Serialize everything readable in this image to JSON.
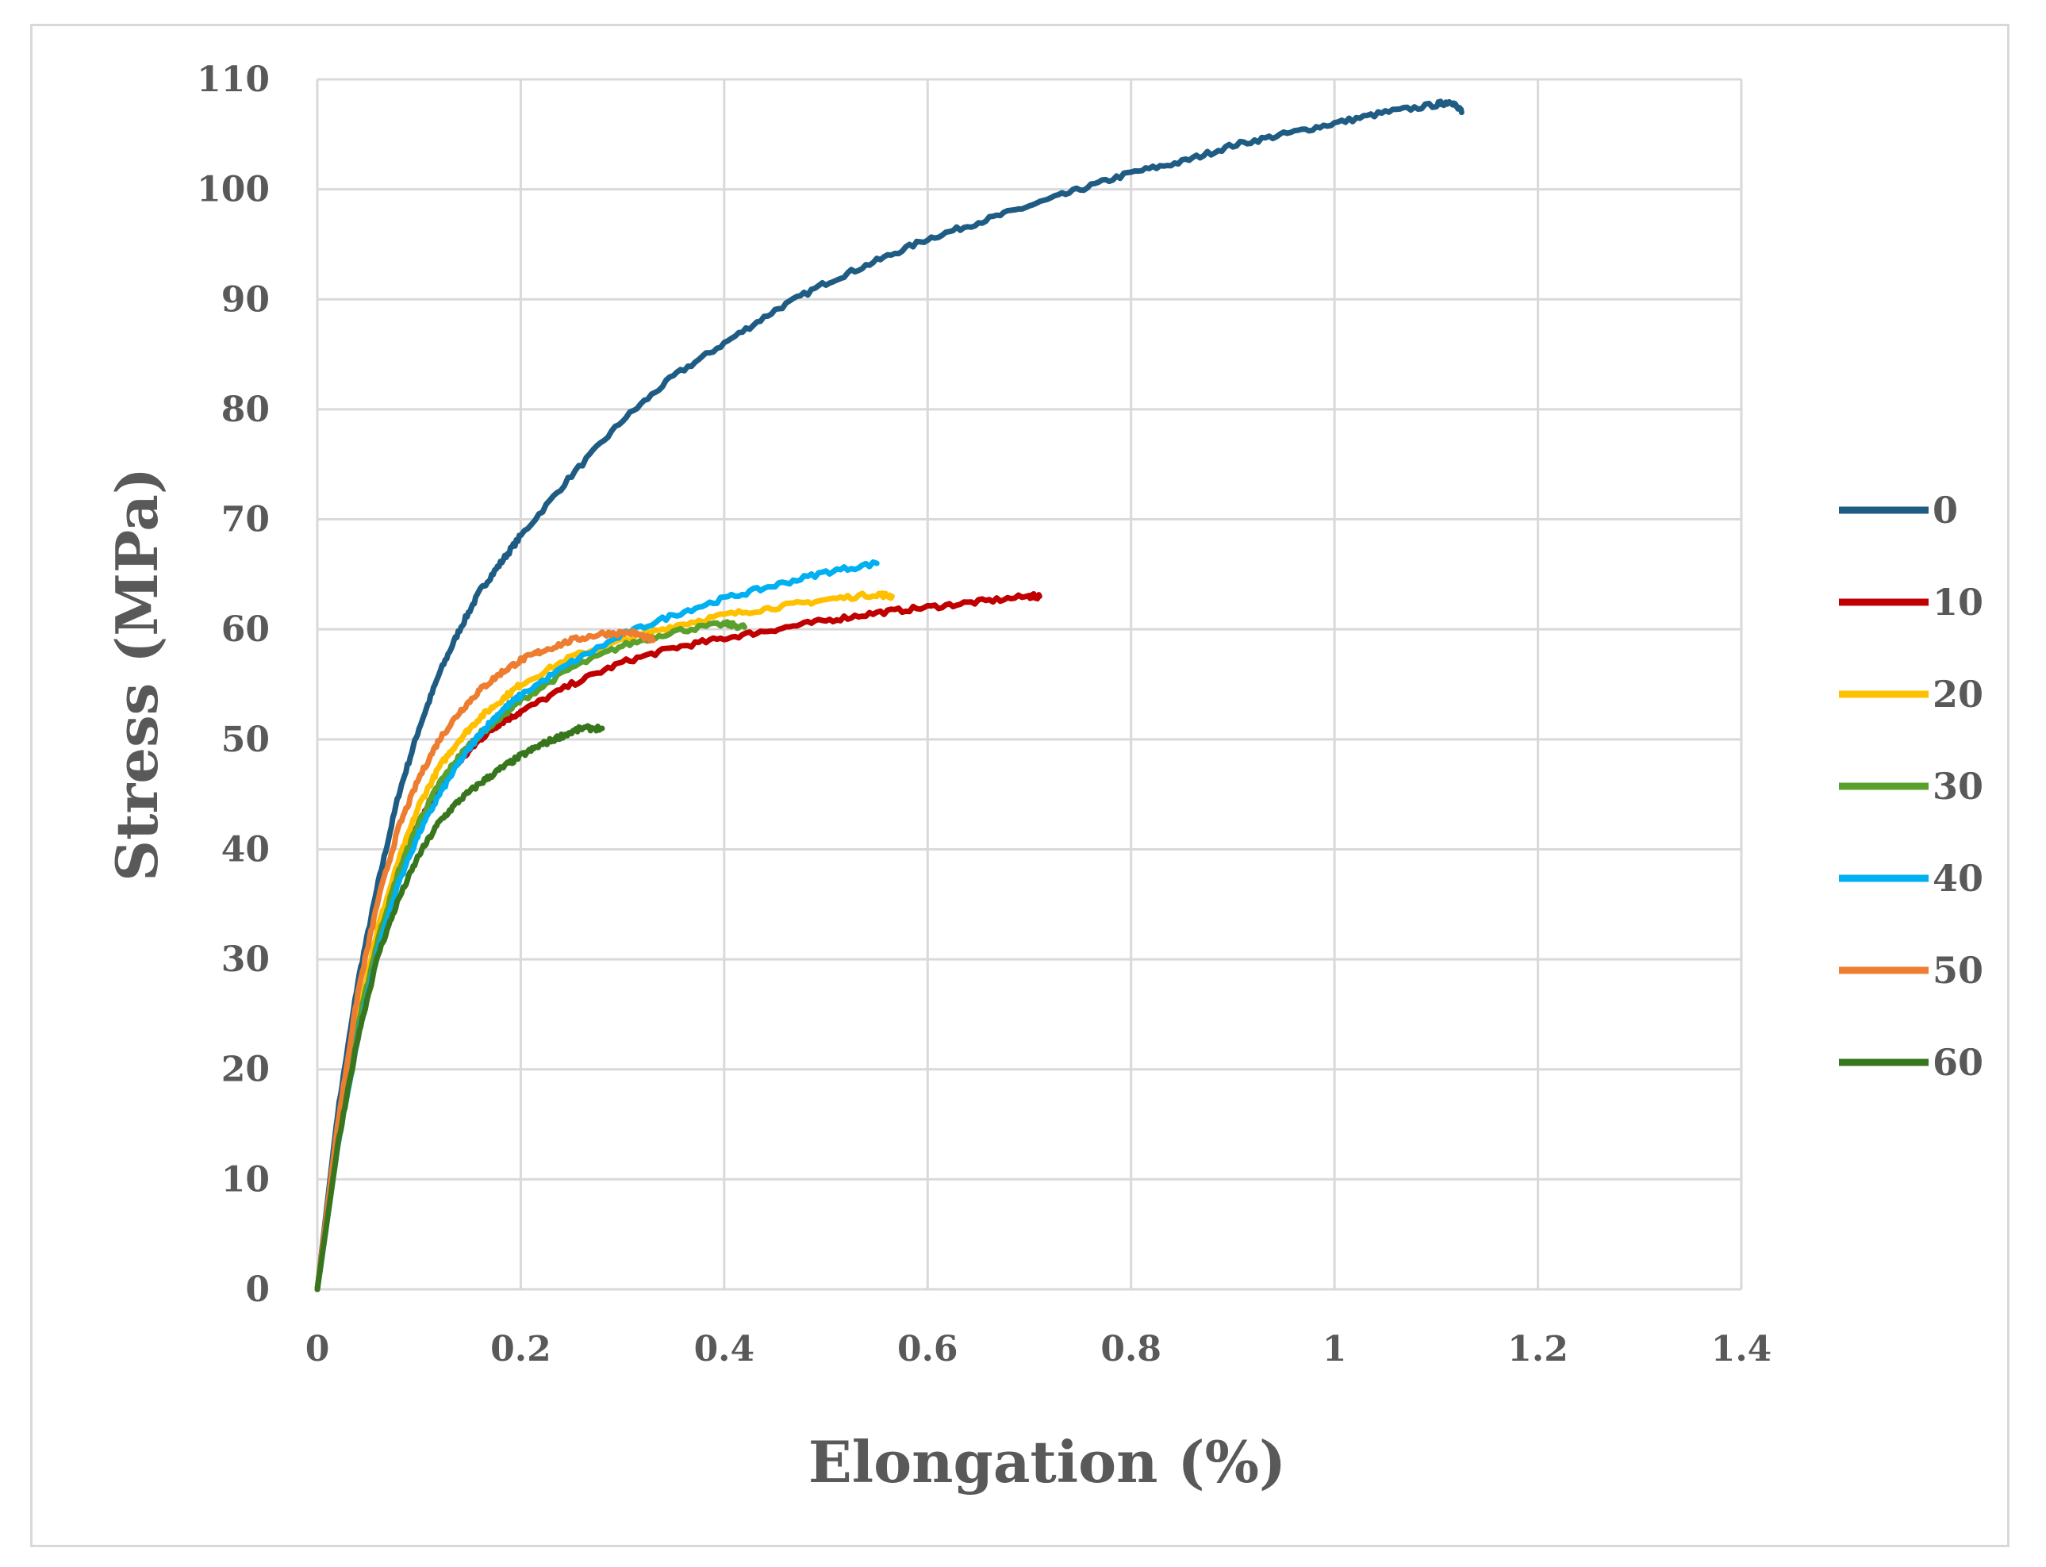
{
  "chart_data": {
    "type": "line",
    "title": "",
    "xlabel": "Elongation (%)",
    "ylabel": "Stress (MPa)",
    "xlim": [
      0,
      1.4
    ],
    "ylim": [
      0,
      110
    ],
    "xticks": [
      0,
      0.2,
      0.4,
      0.6,
      0.8,
      1,
      1.2,
      1.4
    ],
    "xtick_labels": [
      "0",
      "0.2",
      "0.4",
      "0.6",
      "0.8",
      "1",
      "1.2",
      "1.4"
    ],
    "yticks": [
      0,
      10,
      20,
      30,
      40,
      50,
      60,
      70,
      80,
      90,
      100,
      110
    ],
    "ytick_labels": [
      "0",
      "10",
      "20",
      "30",
      "40",
      "50",
      "60",
      "70",
      "80",
      "90",
      "100",
      "110"
    ],
    "grid": true,
    "legend_position": "right",
    "series": [
      {
        "name": "0",
        "color": "#1f5c84",
        "x": [
          0,
          0.02,
          0.04,
          0.06,
          0.08,
          0.1,
          0.12,
          0.14,
          0.16,
          0.18,
          0.2,
          0.25,
          0.3,
          0.35,
          0.4,
          0.45,
          0.5,
          0.55,
          0.6,
          0.65,
          0.7,
          0.75,
          0.8,
          0.85,
          0.9,
          0.95,
          1.0,
          1.05,
          1.1,
          1.115,
          1.125
        ],
        "y": [
          0,
          16,
          28,
          37,
          45,
          51,
          56,
          60,
          63.5,
          66,
          68.5,
          74,
          79,
          83,
          86,
          89,
          91.5,
          93.5,
          95.5,
          97,
          98.5,
          100,
          101.5,
          102.5,
          104,
          105,
          106,
          107,
          107.7,
          108,
          107
        ]
      },
      {
        "name": "10",
        "color": "#c00000",
        "x": [
          0,
          0.02,
          0.04,
          0.06,
          0.08,
          0.1,
          0.12,
          0.14,
          0.16,
          0.18,
          0.2,
          0.25,
          0.3,
          0.35,
          0.4,
          0.45,
          0.5,
          0.55,
          0.6,
          0.65,
          0.7,
          0.71
        ],
        "y": [
          0,
          14,
          24,
          32,
          38,
          42.5,
          45.5,
          48,
          50,
          51.5,
          52.5,
          55,
          57,
          58.3,
          59.2,
          60,
          60.8,
          61.5,
          62,
          62.5,
          63,
          63
        ]
      },
      {
        "name": "20",
        "color": "#ffc000",
        "x": [
          0,
          0.02,
          0.04,
          0.06,
          0.08,
          0.1,
          0.12,
          0.14,
          0.16,
          0.18,
          0.2,
          0.25,
          0.3,
          0.35,
          0.4,
          0.45,
          0.5,
          0.55,
          0.565
        ],
        "y": [
          0,
          14,
          25,
          33,
          39,
          44,
          47.5,
          50,
          52,
          53.5,
          55,
          57.5,
          59,
          60.3,
          61.3,
          62,
          62.7,
          63.2,
          63
        ]
      },
      {
        "name": "30",
        "color": "#5aa02c",
        "x": [
          0,
          0.02,
          0.04,
          0.06,
          0.08,
          0.1,
          0.12,
          0.14,
          0.16,
          0.18,
          0.2,
          0.25,
          0.3,
          0.35,
          0.4,
          0.42
        ],
        "y": [
          0,
          14,
          24,
          32,
          38,
          42.5,
          46,
          48.5,
          50.5,
          52,
          53.5,
          56.5,
          58.5,
          59.8,
          60.5,
          60.2
        ]
      },
      {
        "name": "40",
        "color": "#00b0f0",
        "x": [
          0,
          0.02,
          0.04,
          0.06,
          0.08,
          0.1,
          0.12,
          0.14,
          0.16,
          0.18,
          0.2,
          0.25,
          0.3,
          0.35,
          0.4,
          0.45,
          0.5,
          0.55
        ],
        "y": [
          0,
          13,
          23,
          31,
          37,
          41.5,
          45,
          48,
          50.5,
          52.5,
          54,
          57,
          59.5,
          61.3,
          62.8,
          64,
          65.2,
          66
        ]
      },
      {
        "name": "50",
        "color": "#ed7d31",
        "x": [
          0,
          0.02,
          0.04,
          0.06,
          0.08,
          0.1,
          0.12,
          0.14,
          0.16,
          0.18,
          0.2,
          0.22,
          0.25,
          0.28,
          0.31,
          0.33
        ],
        "y": [
          0,
          15,
          27,
          35.5,
          42,
          46.5,
          50,
          52.5,
          54.5,
          56,
          57.2,
          58,
          59,
          59.6,
          59.7,
          59
        ]
      },
      {
        "name": "60",
        "color": "#38761d",
        "x": [
          0,
          0.02,
          0.04,
          0.06,
          0.08,
          0.1,
          0.12,
          0.14,
          0.16,
          0.18,
          0.2,
          0.22,
          0.24,
          0.26,
          0.28
        ],
        "y": [
          0,
          13,
          23,
          30.5,
          35.5,
          39.5,
          42.5,
          44.5,
          46,
          47.3,
          48.5,
          49.5,
          50.3,
          51,
          51
        ]
      }
    ]
  }
}
